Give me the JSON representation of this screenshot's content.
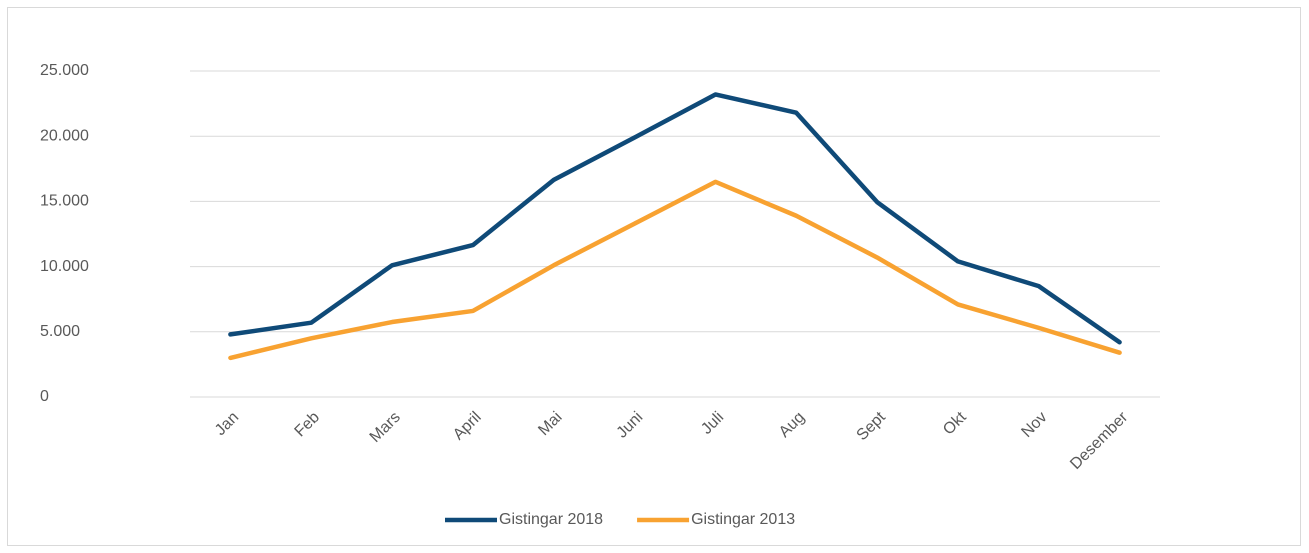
{
  "chart_data": {
    "type": "line",
    "categories": [
      "Jan",
      "Feb",
      "Mars",
      "April",
      "Mai",
      "Juni",
      "Juli",
      "Aug",
      "Sept",
      "Okt",
      "Nov",
      "Desember"
    ],
    "series": [
      {
        "name": "Gistingar 2018",
        "color": "#0f4a78",
        "values": [
          4800,
          5700,
          10100,
          11650,
          16650,
          19900,
          23200,
          21800,
          14950,
          10400,
          8500,
          4200
        ]
      },
      {
        "name": "Gistingar 2013",
        "color": "#f8a231",
        "values": [
          3000,
          4500,
          5750,
          6600,
          10100,
          13300,
          16500,
          13900,
          10700,
          7100,
          5300,
          3400
        ]
      }
    ],
    "ylim": [
      0,
      25000
    ],
    "yticks": [
      0,
      {
        "value": 5000,
        "label": "5.000"
      },
      {
        "value": 10000,
        "label": "10.000"
      },
      {
        "value": 15000,
        "label": "15.000"
      },
      {
        "value": 20000,
        "label": "20.000"
      },
      {
        "value": 25000,
        "label": "25.000"
      }
    ],
    "grid": true,
    "legend": "bottom"
  }
}
